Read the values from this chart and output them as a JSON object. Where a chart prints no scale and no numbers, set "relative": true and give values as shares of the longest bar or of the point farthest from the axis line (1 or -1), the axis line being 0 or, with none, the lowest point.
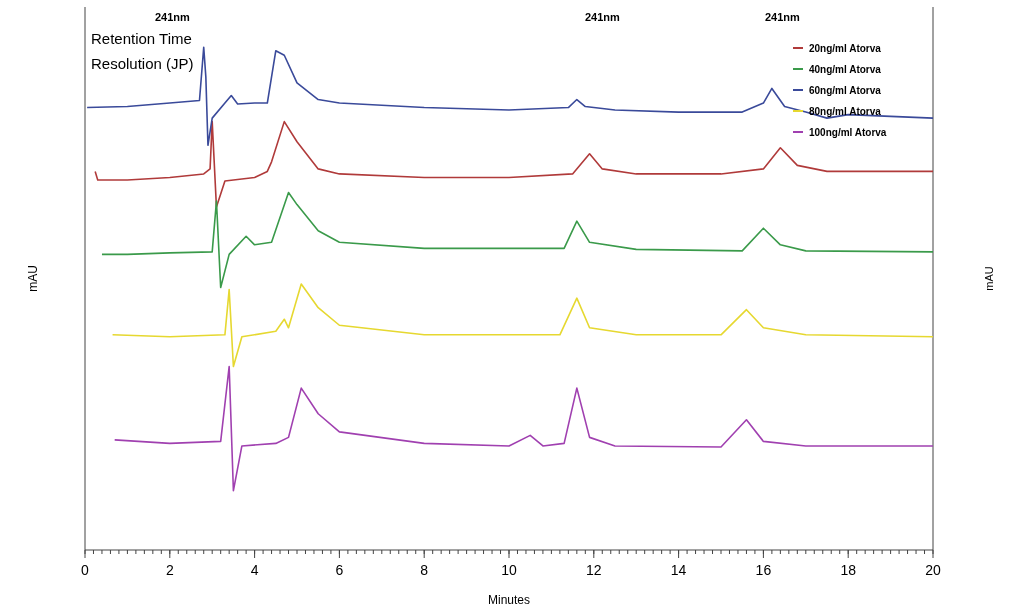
{
  "chart_data": {
    "type": "line",
    "relative": true,
    "xlabel": "Minutes",
    "ylabel": "mAU",
    "y2label": "mAU",
    "xlim": [
      0,
      20
    ],
    "xticks": [
      0,
      2,
      4,
      6,
      8,
      10,
      12,
      14,
      16,
      18,
      20
    ],
    "grid": false,
    "legend": "top right",
    "annotations": [
      "241nm",
      "241nm",
      "241nm",
      "Retention Time",
      "Resolution (JP)"
    ],
    "series": [
      {
        "name": "20ng/ml Atorva",
        "color": "#b03a3a",
        "x": [
          0.24,
          0.3,
          1,
          2,
          2.8,
          2.95,
          3.0,
          3.1,
          3.3,
          4.0,
          4.3,
          4.4,
          4.7,
          5.0,
          5.5,
          6,
          8,
          10,
          11.5,
          11.9,
          12.2,
          13,
          15,
          16.0,
          16.4,
          16.8,
          17.5,
          20
        ],
        "values": [
          0.753,
          0.736,
          0.736,
          0.741,
          0.748,
          0.758,
          0.852,
          0.682,
          0.734,
          0.741,
          0.753,
          0.772,
          0.852,
          0.812,
          0.758,
          0.748,
          0.741,
          0.741,
          0.748,
          0.788,
          0.758,
          0.748,
          0.748,
          0.758,
          0.8,
          0.765,
          0.753,
          0.753
        ]
      },
      {
        "name": "40ng/ml Atorva",
        "color": "#3a9a4a",
        "x": [
          0.4,
          1,
          2,
          3.0,
          3.1,
          3.2,
          3.4,
          3.8,
          4.0,
          4.4,
          4.8,
          5.0,
          5.5,
          6,
          8,
          11.3,
          11.6,
          11.9,
          13,
          15.5,
          16,
          16.4,
          17,
          20
        ],
        "values": [
          0.588,
          0.588,
          0.591,
          0.593,
          0.694,
          0.522,
          0.588,
          0.624,
          0.607,
          0.612,
          0.711,
          0.687,
          0.635,
          0.612,
          0.6,
          0.6,
          0.654,
          0.612,
          0.598,
          0.595,
          0.64,
          0.607,
          0.595,
          0.593
        ]
      },
      {
        "name": "60ng/ml Atorva",
        "color": "#3a4a9a",
        "x": [
          0.05,
          1,
          2,
          2.7,
          2.8,
          2.85,
          2.9,
          3.0,
          3.3,
          3.45,
          3.6,
          4.0,
          4.3,
          4.5,
          4.7,
          5.0,
          5.5,
          6,
          8,
          10,
          11.4,
          11.6,
          11.8,
          12.5,
          14,
          15.5,
          16.0,
          16.2,
          16.5,
          17,
          17.5,
          18,
          20
        ],
        "values": [
          0.88,
          0.882,
          0.889,
          0.894,
          1.0,
          0.941,
          0.805,
          0.859,
          0.889,
          0.904,
          0.887,
          0.889,
          0.889,
          0.993,
          0.984,
          0.929,
          0.896,
          0.889,
          0.88,
          0.875,
          0.88,
          0.896,
          0.882,
          0.875,
          0.871,
          0.871,
          0.889,
          0.918,
          0.882,
          0.871,
          0.859,
          0.866,
          0.859
        ]
      },
      {
        "name": "80ng/ml Atorva",
        "color": "#e6d830",
        "x": [
          0.65,
          2,
          3.3,
          3.4,
          3.5,
          3.7,
          4.5,
          4.7,
          4.8,
          5.1,
          5.5,
          6,
          8,
          11.2,
          11.6,
          11.9,
          13,
          15,
          15.6,
          16.0,
          17,
          20
        ],
        "values": [
          0.428,
          0.424,
          0.428,
          0.518,
          0.365,
          0.424,
          0.435,
          0.459,
          0.442,
          0.529,
          0.482,
          0.447,
          0.428,
          0.428,
          0.501,
          0.442,
          0.428,
          0.428,
          0.478,
          0.442,
          0.428,
          0.424
        ]
      },
      {
        "name": "100ng/ml Atorva",
        "color": "#a040b0",
        "x": [
          0.7,
          2,
          3.2,
          3.4,
          3.5,
          3.7,
          4.5,
          4.8,
          5.1,
          5.5,
          6,
          8,
          10,
          10.5,
          10.8,
          11.3,
          11.6,
          11.9,
          12.5,
          15,
          15.6,
          16.0,
          17,
          20
        ],
        "values": [
          0.219,
          0.212,
          0.216,
          0.365,
          0.118,
          0.207,
          0.212,
          0.224,
          0.322,
          0.271,
          0.235,
          0.212,
          0.207,
          0.228,
          0.207,
          0.212,
          0.322,
          0.224,
          0.207,
          0.205,
          0.259,
          0.216,
          0.207,
          0.207
        ]
      }
    ]
  }
}
